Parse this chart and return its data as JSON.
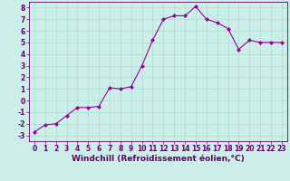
{
  "x": [
    0,
    1,
    2,
    3,
    4,
    5,
    6,
    7,
    8,
    9,
    10,
    11,
    12,
    13,
    14,
    15,
    16,
    17,
    18,
    19,
    20,
    21,
    22,
    23
  ],
  "y": [
    -2.7,
    -2.1,
    -2.0,
    -1.3,
    -0.6,
    -0.6,
    -0.5,
    1.1,
    1.0,
    1.2,
    3.0,
    5.2,
    7.0,
    7.3,
    7.3,
    8.1,
    7.0,
    6.7,
    6.2,
    4.4,
    5.2,
    5.0,
    5.0,
    5.0
  ],
  "line_color": "#990099",
  "marker": "D",
  "markersize": 2.0,
  "linewidth": 0.8,
  "bg_color": "#cceee8",
  "grid_color": "#aaddcc",
  "xlabel": "Windchill (Refroidissement éolien,°C)",
  "xlabel_fontsize": 6.5,
  "tick_fontsize": 5.5,
  "xlim": [
    -0.5,
    23.5
  ],
  "ylim": [
    -3.5,
    8.5
  ],
  "yticks": [
    -3,
    -2,
    -1,
    0,
    1,
    2,
    3,
    4,
    5,
    6,
    7,
    8
  ],
  "xticks": [
    0,
    1,
    2,
    3,
    4,
    5,
    6,
    7,
    8,
    9,
    10,
    11,
    12,
    13,
    14,
    15,
    16,
    17,
    18,
    19,
    20,
    21,
    22,
    23
  ],
  "text_color": "#660066"
}
